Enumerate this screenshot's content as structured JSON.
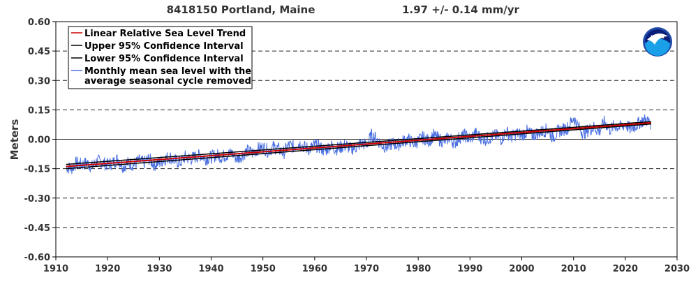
{
  "chart_data": {
    "type": "line",
    "title_station": "8418150 Portland, Maine",
    "title_rate": "1.97 +/-  0.14 mm/yr",
    "ylabel": "Meters",
    "xlim": [
      1910,
      2030
    ],
    "ylim": [
      -0.6,
      0.6
    ],
    "x_ticks": [
      "1910",
      "1920",
      "1930",
      "1940",
      "1950",
      "1960",
      "1970",
      "1980",
      "1990",
      "2000",
      "2010",
      "2020",
      "2030"
    ],
    "y_ticks": [
      "0.60",
      "0.45",
      "0.30",
      "0.15",
      "0.00",
      "-0.15",
      "-0.30",
      "-0.45",
      "-0.60"
    ],
    "grid": "dashed horizontal lines at each y tick; solid line at 0.00",
    "legend_position": "top-left",
    "legend": [
      {
        "label": "Linear Relative Sea Level Trend",
        "color": "#cc0000"
      },
      {
        "label": "Upper 95% Confidence Interval",
        "color": "#000000"
      },
      {
        "label": "Lower 95% Confidence Interval",
        "color": "#000000"
      },
      {
        "label_line1": "Monthly mean sea level with the",
        "label_line2": "average seasonal cycle removed",
        "color": "#4a6fe0"
      }
    ],
    "series": [
      {
        "name": "Linear Relative Sea Level Trend",
        "color": "#cc0000",
        "x": [
          1912,
          2025
        ],
        "y": [
          -0.139,
          0.084
        ]
      },
      {
        "name": "Upper 95% Confidence Interval",
        "color": "#000000",
        "x": [
          1912,
          2025
        ],
        "y": [
          -0.128,
          0.09
        ]
      },
      {
        "name": "Lower 95% Confidence Interval",
        "color": "#000000",
        "x": [
          1912,
          2025
        ],
        "y": [
          -0.15,
          0.078
        ]
      },
      {
        "name": "Monthly mean sea level with the average seasonal cycle removed",
        "color": "#4a6fe0",
        "x": [
          1912,
          1913,
          1914,
          1915,
          1916,
          1917,
          1918,
          1919,
          1920,
          1921,
          1922,
          1923,
          1924,
          1925,
          1926,
          1927,
          1928,
          1929,
          1930,
          1931,
          1932,
          1933,
          1934,
          1935,
          1936,
          1937,
          1938,
          1939,
          1940,
          1941,
          1942,
          1943,
          1944,
          1945,
          1946,
          1947,
          1948,
          1949,
          1950,
          1951,
          1952,
          1953,
          1954,
          1955,
          1956,
          1957,
          1958,
          1959,
          1960,
          1961,
          1962,
          1963,
          1964,
          1965,
          1966,
          1967,
          1968,
          1969,
          1970,
          1971,
          1972,
          1973,
          1974,
          1975,
          1976,
          1977,
          1978,
          1979,
          1980,
          1981,
          1982,
          1983,
          1984,
          1985,
          1986,
          1987,
          1988,
          1989,
          1990,
          1991,
          1992,
          1993,
          1994,
          1995,
          1996,
          1997,
          1998,
          1999,
          2000,
          2001,
          2002,
          2003,
          2004,
          2005,
          2006,
          2007,
          2008,
          2009,
          2010,
          2011,
          2012,
          2013,
          2014,
          2015,
          2016,
          2017,
          2018,
          2019,
          2020,
          2021,
          2022,
          2023,
          2024,
          2025
        ],
        "y": [
          -0.14,
          -0.15,
          -0.12,
          -0.13,
          -0.12,
          -0.14,
          -0.11,
          -0.12,
          -0.13,
          -0.12,
          -0.1,
          -0.14,
          -0.12,
          -0.13,
          -0.11,
          -0.12,
          -0.1,
          -0.13,
          -0.12,
          -0.1,
          -0.09,
          -0.11,
          -0.12,
          -0.09,
          -0.1,
          -0.09,
          -0.08,
          -0.1,
          -0.09,
          -0.08,
          -0.09,
          -0.08,
          -0.07,
          -0.1,
          -0.08,
          -0.06,
          -0.07,
          -0.05,
          -0.04,
          -0.06,
          -0.04,
          -0.05,
          -0.07,
          -0.03,
          -0.04,
          -0.02,
          -0.04,
          -0.05,
          -0.03,
          -0.04,
          -0.06,
          -0.03,
          -0.05,
          -0.04,
          -0.03,
          -0.05,
          -0.04,
          -0.02,
          -0.03,
          0.02,
          0.0,
          -0.03,
          -0.04,
          -0.02,
          -0.03,
          -0.01,
          0.0,
          -0.02,
          -0.01,
          0.01,
          -0.01,
          0.02,
          0.0,
          -0.01,
          0.01,
          -0.02,
          0.01,
          0.02,
          0.0,
          0.03,
          0.01,
          0.0,
          0.01,
          0.02,
          0.0,
          0.04,
          0.01,
          0.03,
          0.02,
          0.04,
          0.02,
          0.03,
          0.04,
          0.05,
          0.01,
          0.04,
          0.05,
          0.06,
          0.11,
          0.06,
          0.03,
          0.05,
          0.06,
          0.04,
          0.09,
          0.05,
          0.07,
          0.06,
          0.08,
          0.05,
          0.07,
          0.09,
          0.1,
          0.08
        ]
      }
    ]
  },
  "logo": {
    "text": "NOAA",
    "colors": {
      "ring": "#1f4aa8",
      "sky": "#0a1f7a",
      "sea": "#1aa0e8",
      "bird": "#ffffff"
    }
  }
}
